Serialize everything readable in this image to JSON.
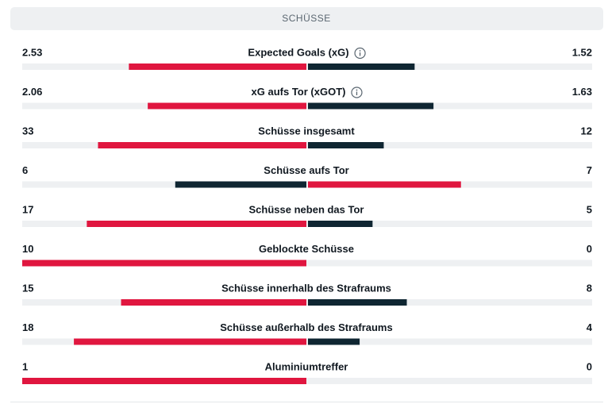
{
  "header": {
    "title": "SCHÜSSE"
  },
  "colors": {
    "leader": "#e0163f",
    "trailer": "#0f2632",
    "track": "#eef0f2"
  },
  "rows": [
    {
      "label": "Expected Goals (xG)",
      "home": 2.53,
      "away": 1.52,
      "info": true
    },
    {
      "label": "xG aufs Tor (xGOT)",
      "home": 2.06,
      "away": 1.63,
      "info": true
    },
    {
      "label": "Schüsse insgesamt",
      "home": 33,
      "away": 12
    },
    {
      "label": "Schüsse aufs Tor",
      "home": 6,
      "away": 7
    },
    {
      "label": "Schüsse neben das Tor",
      "home": 17,
      "away": 5
    },
    {
      "label": "Geblockte Schüsse",
      "home": 10,
      "away": 0
    },
    {
      "label": "Schüsse innerhalb des Strafraums",
      "home": 15,
      "away": 8
    },
    {
      "label": "Schüsse außerhalb des Strafraums",
      "home": 18,
      "away": 4
    },
    {
      "label": "Aluminiumtreffer",
      "home": 1,
      "away": 0
    }
  ]
}
